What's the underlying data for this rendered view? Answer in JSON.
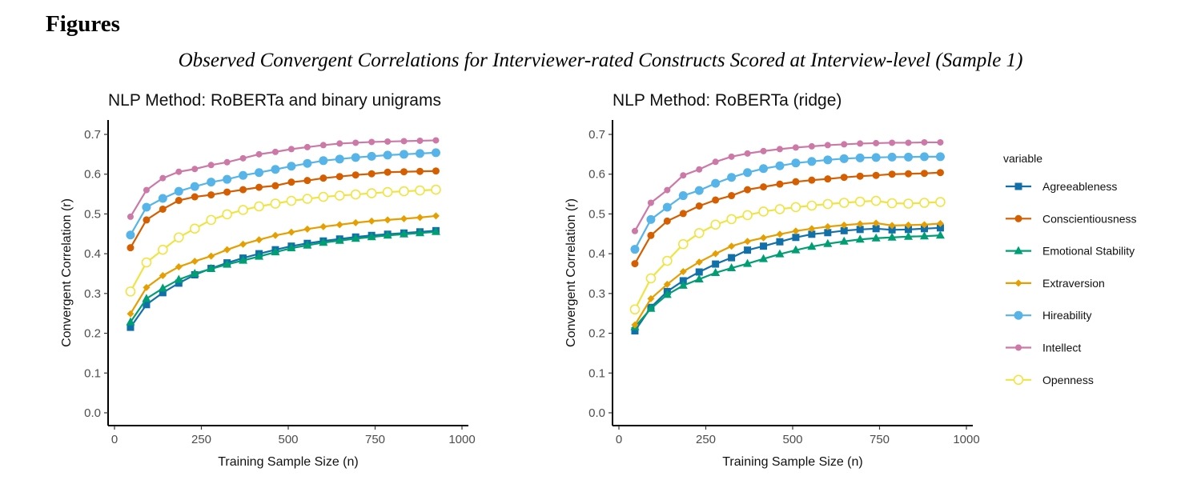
{
  "page": {
    "heading": "Figures",
    "subtitle": "Observed Convergent Correlations for Interviewer-rated Constructs Scored at Interview-level (Sample 1)"
  },
  "legend": {
    "title": "variable",
    "placement": "right",
    "entries": [
      {
        "name": "Agreeableness",
        "color": "#1170aa",
        "marker": "square"
      },
      {
        "name": "Conscientiousness",
        "color": "#d55e00",
        "marker": "circle"
      },
      {
        "name": "Emotional Stability",
        "color": "#009e73",
        "marker": "triangle"
      },
      {
        "name": "Extraversion",
        "color": "#e69f00",
        "marker": "diamond"
      },
      {
        "name": "Hireability",
        "color": "#56b4e9",
        "marker": "circle-large"
      },
      {
        "name": "Intellect",
        "color": "#cc79a7",
        "marker": "circle-small"
      },
      {
        "name": "Openness",
        "color": "#f0e442",
        "marker": "circle-open"
      }
    ]
  },
  "chart_data": [
    {
      "type": "line",
      "title": "NLP Method: RoBERTa and binary unigrams",
      "xlabel": "Training Sample Size (n)",
      "ylabel": "Convergent Correlation (r)",
      "xlim": [
        0,
        1000
      ],
      "ylim": [
        0,
        0.7
      ],
      "x_ticks": [
        "0",
        "250",
        "500",
        "750",
        "1000"
      ],
      "y_ticks": [
        "0.0",
        "0.1",
        "0.2",
        "0.3",
        "0.4",
        "0.5",
        "0.6",
        "0.7"
      ],
      "grid": false,
      "x": [
        46,
        92,
        139,
        185,
        231,
        278,
        324,
        370,
        416,
        463,
        509,
        555,
        601,
        648,
        694,
        740,
        786,
        833,
        879,
        925
      ],
      "series": [
        {
          "name": "Agreeableness",
          "values": [
            0.215,
            0.272,
            0.302,
            0.326,
            0.347,
            0.363,
            0.377,
            0.389,
            0.4,
            0.41,
            0.419,
            0.426,
            0.432,
            0.437,
            0.442,
            0.446,
            0.449,
            0.452,
            0.455,
            0.458
          ]
        },
        {
          "name": "Conscientiousness",
          "values": [
            0.415,
            0.485,
            0.512,
            0.534,
            0.543,
            0.548,
            0.555,
            0.561,
            0.567,
            0.571,
            0.58,
            0.584,
            0.59,
            0.594,
            0.598,
            0.601,
            0.605,
            0.606,
            0.607,
            0.608
          ]
        },
        {
          "name": "Emotional Stability",
          "values": [
            0.228,
            0.287,
            0.313,
            0.335,
            0.35,
            0.362,
            0.373,
            0.383,
            0.393,
            0.404,
            0.414,
            0.421,
            0.428,
            0.433,
            0.438,
            0.442,
            0.446,
            0.449,
            0.452,
            0.455
          ]
        },
        {
          "name": "Extraversion",
          "values": [
            0.249,
            0.315,
            0.345,
            0.367,
            0.381,
            0.394,
            0.41,
            0.424,
            0.435,
            0.446,
            0.454,
            0.462,
            0.468,
            0.473,
            0.478,
            0.482,
            0.485,
            0.488,
            0.491,
            0.495
          ]
        },
        {
          "name": "Hireability",
          "values": [
            0.447,
            0.517,
            0.539,
            0.557,
            0.569,
            0.58,
            0.587,
            0.597,
            0.604,
            0.612,
            0.62,
            0.627,
            0.634,
            0.638,
            0.642,
            0.645,
            0.648,
            0.65,
            0.652,
            0.654
          ]
        },
        {
          "name": "Intellect",
          "values": [
            0.493,
            0.56,
            0.59,
            0.606,
            0.613,
            0.623,
            0.63,
            0.64,
            0.65,
            0.656,
            0.663,
            0.668,
            0.673,
            0.677,
            0.679,
            0.681,
            0.682,
            0.683,
            0.684,
            0.685
          ]
        },
        {
          "name": "Openness",
          "values": [
            0.305,
            0.378,
            0.41,
            0.441,
            0.463,
            0.485,
            0.499,
            0.51,
            0.519,
            0.526,
            0.533,
            0.538,
            0.543,
            0.546,
            0.549,
            0.552,
            0.555,
            0.557,
            0.559,
            0.561
          ]
        }
      ]
    },
    {
      "type": "line",
      "title": "NLP Method: RoBERTa (ridge)",
      "xlabel": "Training Sample Size (n)",
      "ylabel": "Convergent Correlation (r)",
      "xlim": [
        0,
        1000
      ],
      "ylim": [
        0,
        0.7
      ],
      "x_ticks": [
        "0",
        "250",
        "500",
        "750",
        "1000"
      ],
      "y_ticks": [
        "0.0",
        "0.1",
        "0.2",
        "0.3",
        "0.4",
        "0.5",
        "0.6",
        "0.7"
      ],
      "grid": false,
      "x": [
        46,
        92,
        139,
        185,
        231,
        278,
        324,
        370,
        416,
        463,
        509,
        555,
        601,
        648,
        694,
        740,
        786,
        833,
        879,
        925
      ],
      "series": [
        {
          "name": "Agreeableness",
          "values": [
            0.206,
            0.265,
            0.305,
            0.332,
            0.354,
            0.374,
            0.39,
            0.409,
            0.419,
            0.43,
            0.441,
            0.449,
            0.453,
            0.458,
            0.461,
            0.463,
            0.46,
            0.461,
            0.463,
            0.465
          ]
        },
        {
          "name": "Conscientiousness",
          "values": [
            0.375,
            0.446,
            0.482,
            0.501,
            0.52,
            0.535,
            0.546,
            0.561,
            0.568,
            0.575,
            0.581,
            0.585,
            0.588,
            0.592,
            0.595,
            0.597,
            0.6,
            0.601,
            0.602,
            0.604
          ]
        },
        {
          "name": "Emotional Stability",
          "values": [
            0.216,
            0.262,
            0.297,
            0.32,
            0.336,
            0.352,
            0.364,
            0.375,
            0.387,
            0.399,
            0.409,
            0.418,
            0.425,
            0.431,
            0.436,
            0.439,
            0.441,
            0.443,
            0.444,
            0.446
          ]
        },
        {
          "name": "Extraversion",
          "values": [
            0.221,
            0.287,
            0.323,
            0.355,
            0.379,
            0.4,
            0.419,
            0.431,
            0.44,
            0.449,
            0.457,
            0.463,
            0.468,
            0.472,
            0.475,
            0.477,
            0.471,
            0.472,
            0.473,
            0.476
          ]
        },
        {
          "name": "Hireability",
          "values": [
            0.411,
            0.486,
            0.517,
            0.546,
            0.559,
            0.577,
            0.592,
            0.604,
            0.614,
            0.621,
            0.628,
            0.632,
            0.636,
            0.639,
            0.641,
            0.642,
            0.643,
            0.643,
            0.644,
            0.644
          ]
        },
        {
          "name": "Intellect",
          "values": [
            0.457,
            0.528,
            0.56,
            0.597,
            0.612,
            0.631,
            0.644,
            0.652,
            0.658,
            0.663,
            0.667,
            0.67,
            0.673,
            0.675,
            0.677,
            0.678,
            0.679,
            0.679,
            0.68,
            0.68
          ]
        },
        {
          "name": "Openness",
          "values": [
            0.26,
            0.338,
            0.382,
            0.424,
            0.452,
            0.473,
            0.487,
            0.497,
            0.506,
            0.512,
            0.517,
            0.521,
            0.525,
            0.528,
            0.531,
            0.533,
            0.527,
            0.526,
            0.528,
            0.53
          ]
        }
      ]
    }
  ]
}
